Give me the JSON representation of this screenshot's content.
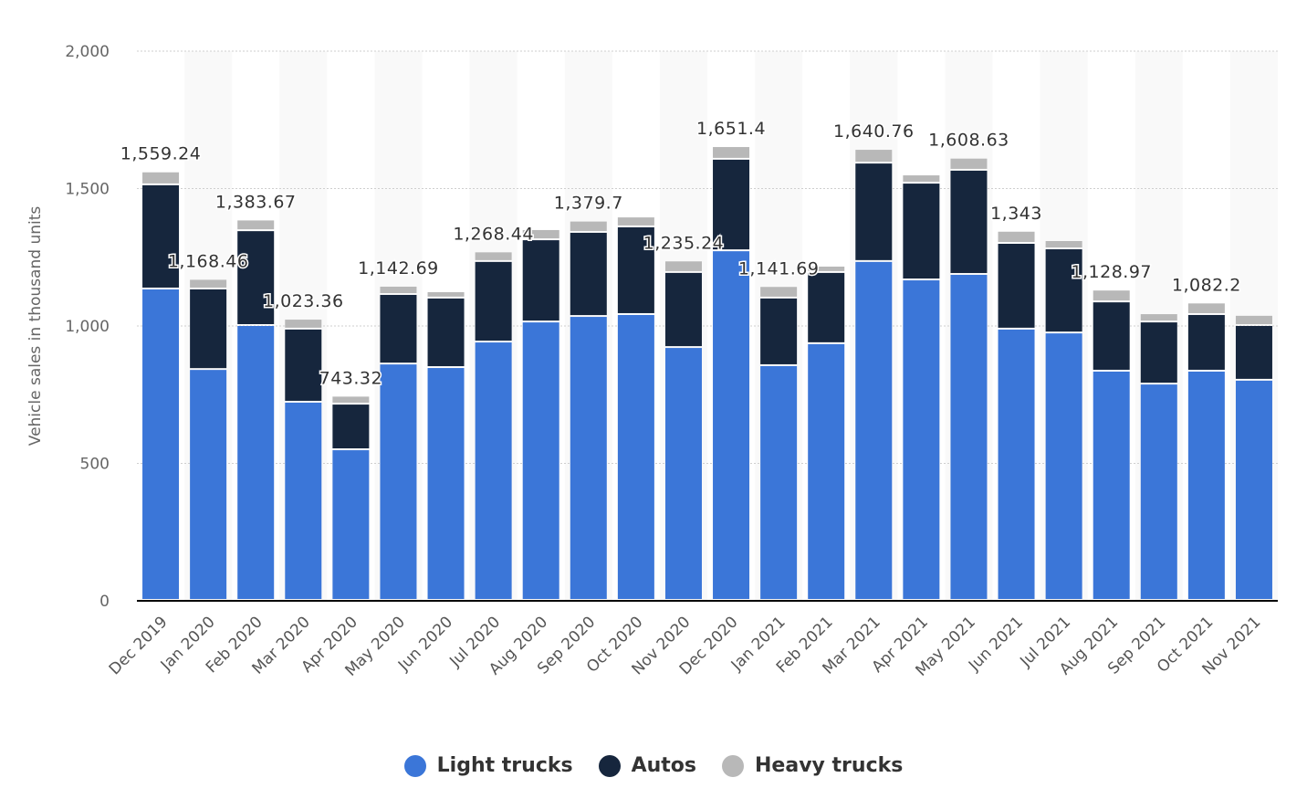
{
  "chart_data": {
    "type": "bar",
    "stacked": true,
    "ylabel": "Vehicle sales in thousand units",
    "ylim": [
      0,
      2000
    ],
    "yticks": [
      "0",
      "500",
      "1,000",
      "1,500",
      "2,000"
    ],
    "ytick_values": [
      0,
      500,
      1000,
      1500,
      2000
    ],
    "grid": true,
    "legend_position": "bottom",
    "categories": [
      "Dec 2019",
      "Jan 2020",
      "Feb 2020",
      "Mar 2020",
      "Apr 2020",
      "May 2020",
      "Jun 2020",
      "Jul 2020",
      "Aug 2020",
      "Sep 2020",
      "Oct 2020",
      "Nov 2020",
      "Dec 2020",
      "Jan 2021",
      "Feb 2021",
      "Mar 2021",
      "Apr 2021",
      "May 2021",
      "Jun 2021",
      "Jul 2021",
      "Aug 2021",
      "Sep 2021",
      "Oct 2021",
      "Nov 2021"
    ],
    "series": [
      {
        "name": "Light trucks",
        "color": "#3b76d8",
        "values": [
          1133,
          840,
          1000,
          721,
          548,
          860,
          847,
          940,
          1013,
          1033,
          1040,
          920,
          1272,
          854,
          934,
          1233,
          1166,
          1186,
          987,
          973,
          834,
          787,
          834,
          801
        ]
      },
      {
        "name": "Autos",
        "color": "#16263d",
        "values": [
          379,
          293,
          345,
          266,
          166,
          253,
          253,
          293,
          299,
          306,
          319,
          273,
          333,
          246,
          259,
          358,
          352,
          379,
          312,
          306,
          252,
          226,
          206,
          199
        ]
      },
      {
        "name": "Heavy trucks",
        "color": "#b8b8b8",
        "values": [
          47,
          35,
          39,
          36,
          29,
          30,
          23,
          35,
          37,
          41,
          36,
          42,
          46,
          42,
          23,
          50,
          30,
          44,
          44,
          30,
          43,
          30,
          42,
          37
        ]
      }
    ],
    "total_labels": [
      "1,559.24",
      "1,168.46",
      "1,383.67",
      "1,023.36",
      "743.32",
      "1,142.69",
      null,
      "1,268.44",
      null,
      "1,379.7",
      null,
      "1,235.24",
      "1,651.4",
      "1,141.69",
      null,
      "1,640.76",
      null,
      "1,608.63",
      "1,343",
      null,
      "1,128.97",
      null,
      "1,082.2",
      null
    ]
  }
}
